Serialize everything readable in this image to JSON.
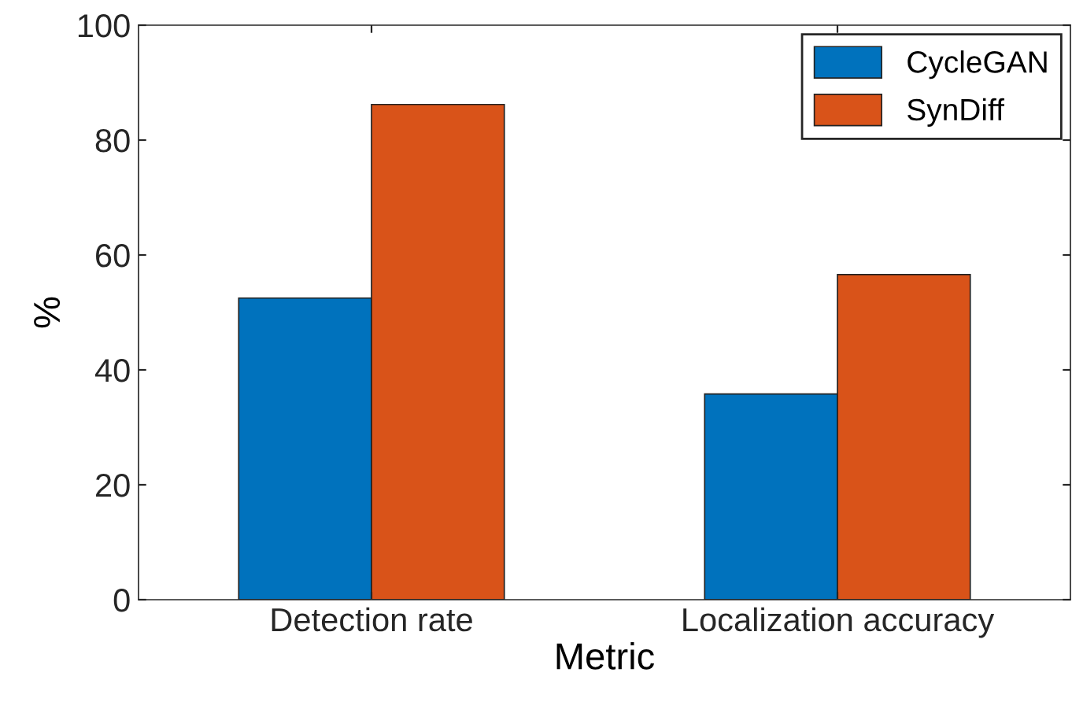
{
  "chart_data": {
    "type": "bar",
    "xlabel": "Metric",
    "ylabel": "%",
    "categories": [
      "Detection rate",
      "Localization accuracy"
    ],
    "series": [
      {
        "name": "CycleGAN",
        "color": "#0072bd",
        "values": [
          52.5,
          35.8
        ]
      },
      {
        "name": "SynDiff",
        "color": "#d95319",
        "values": [
          86.2,
          56.6
        ]
      }
    ],
    "ylim": [
      0,
      100
    ],
    "yticks": [
      0,
      20,
      40,
      60,
      80,
      100
    ],
    "grid": false,
    "legend": "top right"
  }
}
